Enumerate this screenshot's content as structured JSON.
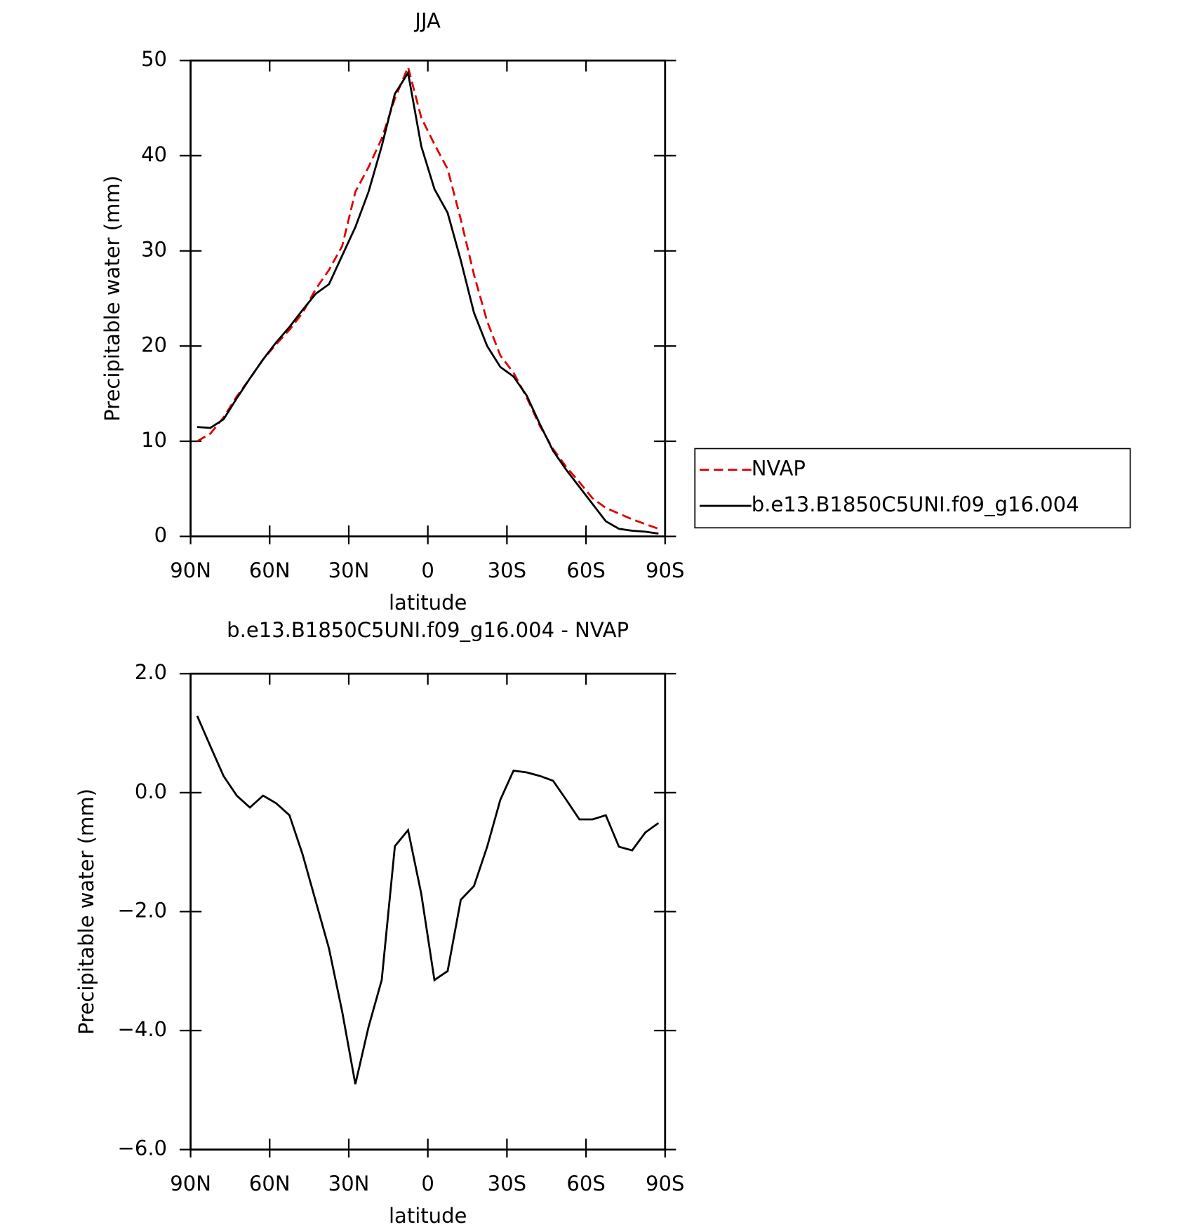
{
  "chart_data": [
    {
      "type": "line",
      "title": "JJA",
      "xlabel": "latitude",
      "ylabel": "Precipitable water (mm)",
      "x": [
        87.5,
        82.5,
        77.5,
        72.5,
        67.5,
        62.5,
        57.5,
        52.5,
        47.5,
        42.5,
        37.5,
        32.5,
        27.5,
        22.5,
        17.5,
        12.5,
        7.5,
        2.5,
        -2.5,
        -7.5,
        -12.5,
        -17.5,
        -22.5,
        -27.5,
        -32.5,
        -37.5,
        -42.5,
        -47.5,
        -52.5,
        -57.5,
        -62.5,
        -67.5,
        -72.5,
        -77.5,
        -82.5,
        -87.5
      ],
      "series": [
        {
          "name": "NVAP",
          "color": "#e00000",
          "line_style": "dashed",
          "values": [
            10.0,
            10.8,
            12.5,
            14.7,
            16.6,
            18.6,
            20.2,
            21.7,
            23.5,
            26.0,
            28.0,
            30.5,
            36.2,
            38.8,
            41.8,
            46.0,
            49.3,
            44.0,
            41.2,
            38.6,
            33.3,
            27.5,
            22.6,
            19.0,
            17.2,
            14.6,
            11.6,
            9.2,
            7.3,
            5.7,
            4.0,
            3.0,
            2.4,
            1.8,
            1.3,
            0.8
          ]
        },
        {
          "name": "b.e13.B1850C5UNI.f09_g16.004",
          "color": "#000000",
          "line_style": "solid",
          "values": [
            11.5,
            11.4,
            12.3,
            14.5,
            16.6,
            18.6,
            20.4,
            22.0,
            23.8,
            25.5,
            26.5,
            29.5,
            32.5,
            36.2,
            41.0,
            46.5,
            48.7,
            41.0,
            36.5,
            34.0,
            29.0,
            23.5,
            20.0,
            17.8,
            16.8,
            14.8,
            11.8,
            9.0,
            7.0,
            5.2,
            3.4,
            1.6,
            0.8,
            0.6,
            0.5,
            0.3
          ]
        }
      ],
      "xlim": [
        90,
        -90
      ],
      "xticks": [
        {
          "value": 90,
          "label": "90N"
        },
        {
          "value": 60,
          "label": "60N"
        },
        {
          "value": 30,
          "label": "30N"
        },
        0,
        {
          "value": -30,
          "label": "30S"
        },
        {
          "value": -60,
          "label": "60S"
        },
        {
          "value": -90,
          "label": "90S"
        }
      ],
      "ylim": [
        0,
        50
      ],
      "yticks": [
        0,
        10,
        20,
        30,
        40,
        50
      ],
      "legend": "right"
    },
    {
      "type": "line",
      "title": "b.e13.B1850C5UNI.f09_g16.004 - NVAP",
      "xlabel": "latitude",
      "ylabel": "Precipitable water (mm)",
      "x": [
        87.5,
        82.5,
        77.5,
        72.5,
        67.5,
        62.5,
        57.5,
        52.5,
        47.5,
        42.5,
        37.5,
        32.5,
        27.5,
        22.5,
        17.5,
        12.5,
        7.5,
        2.5,
        -2.5,
        -7.5,
        -12.5,
        -17.5,
        -22.5,
        -27.5,
        -32.5,
        -37.5,
        -42.5,
        -47.5,
        -52.5,
        -57.5,
        -62.5,
        -67.5,
        -72.5,
        -77.5,
        -82.5,
        -87.5
      ],
      "series": [
        {
          "color": "#000000",
          "line_style": "solid",
          "values": [
            1.29,
            0.78,
            0.28,
            -0.05,
            -0.25,
            -0.05,
            -0.18,
            -0.38,
            -1.04,
            -1.83,
            -2.62,
            -3.68,
            -4.9,
            -3.94,
            -3.15,
            -0.9,
            -0.63,
            -1.7,
            -3.15,
            -3.0,
            -1.8,
            -1.57,
            -0.91,
            -0.12,
            0.37,
            0.34,
            0.28,
            0.2,
            -0.12,
            -0.45,
            -0.45,
            -0.38,
            -0.91,
            -0.97,
            -0.67,
            -0.51
          ]
        }
      ],
      "xlim": [
        90,
        -90
      ],
      "xticks": [
        {
          "value": 90,
          "label": "90N"
        },
        {
          "value": 60,
          "label": "60N"
        },
        {
          "value": 30,
          "label": "30N"
        },
        0,
        {
          "value": -30,
          "label": "30S"
        },
        {
          "value": -60,
          "label": "60S"
        },
        {
          "value": -90,
          "label": "90S"
        }
      ],
      "ylim": [
        -6,
        2
      ],
      "yticks": [
        {
          "value": -6,
          "label": "−6.0"
        },
        {
          "value": -4,
          "label": "−4.0"
        },
        {
          "value": -2,
          "label": "−2.0"
        },
        {
          "value": 0,
          "label": "0.0"
        },
        {
          "value": 2,
          "label": "2.0"
        }
      ]
    }
  ]
}
